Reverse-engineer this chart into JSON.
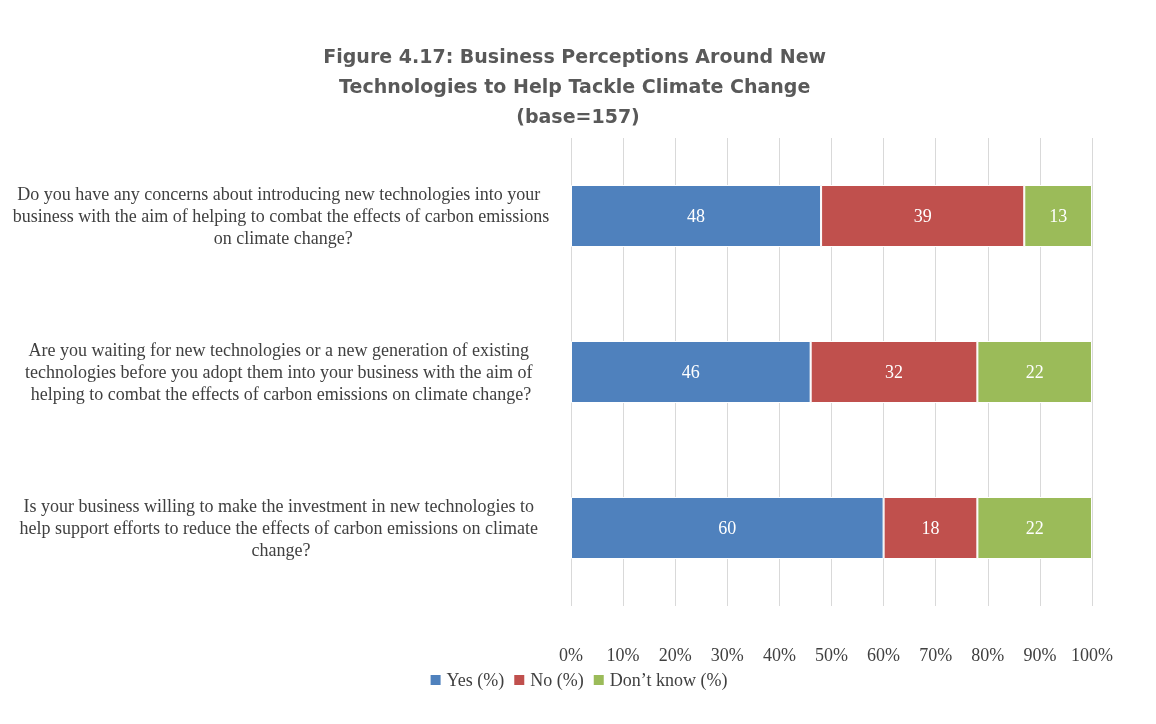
{
  "chart_data": {
    "type": "bar",
    "orientation": "horizontal",
    "stacked": true,
    "title": "Figure 4.17: Business Perceptions Around New Technologies to Help Tackle Climate Change (base=157)",
    "categories": [
      "Do you have any concerns about introducing new technologies into your business with the aim of helping to combat the effects of carbon emissions on climate change?",
      "Are you waiting for new technologies or a new generation of existing technologies before you adopt them into your business with the aim of helping to combat the effects of carbon emissions on climate change?",
      "Is your business willing to make the investment in new technologies to help support efforts to reduce the effects of carbon emissions on climate change?"
    ],
    "series": [
      {
        "name": "Yes (%)",
        "color": "#4f81bd",
        "values": [
          48,
          46,
          60
        ]
      },
      {
        "name": "No (%)",
        "color": "#c0504d",
        "values": [
          39,
          32,
          18
        ]
      },
      {
        "name": "Don’t know (%)",
        "color": "#9bbb59",
        "values": [
          13,
          22,
          22
        ]
      }
    ],
    "xlim": [
      0,
      100
    ],
    "xticks": [
      {
        "value": 0,
        "label": "0%"
      },
      {
        "value": 10,
        "label": "10%"
      },
      {
        "value": 20,
        "label": "20%"
      },
      {
        "value": 30,
        "label": "30%"
      },
      {
        "value": 40,
        "label": "40%"
      },
      {
        "value": 50,
        "label": "50%"
      },
      {
        "value": 60,
        "label": "60%"
      },
      {
        "value": 70,
        "label": "70%"
      },
      {
        "value": 80,
        "label": "80%"
      },
      {
        "value": 90,
        "label": "90%"
      },
      {
        "value": 100,
        "label": "100%"
      }
    ],
    "grid": "x",
    "legend": "bottom",
    "data_labels": true
  }
}
